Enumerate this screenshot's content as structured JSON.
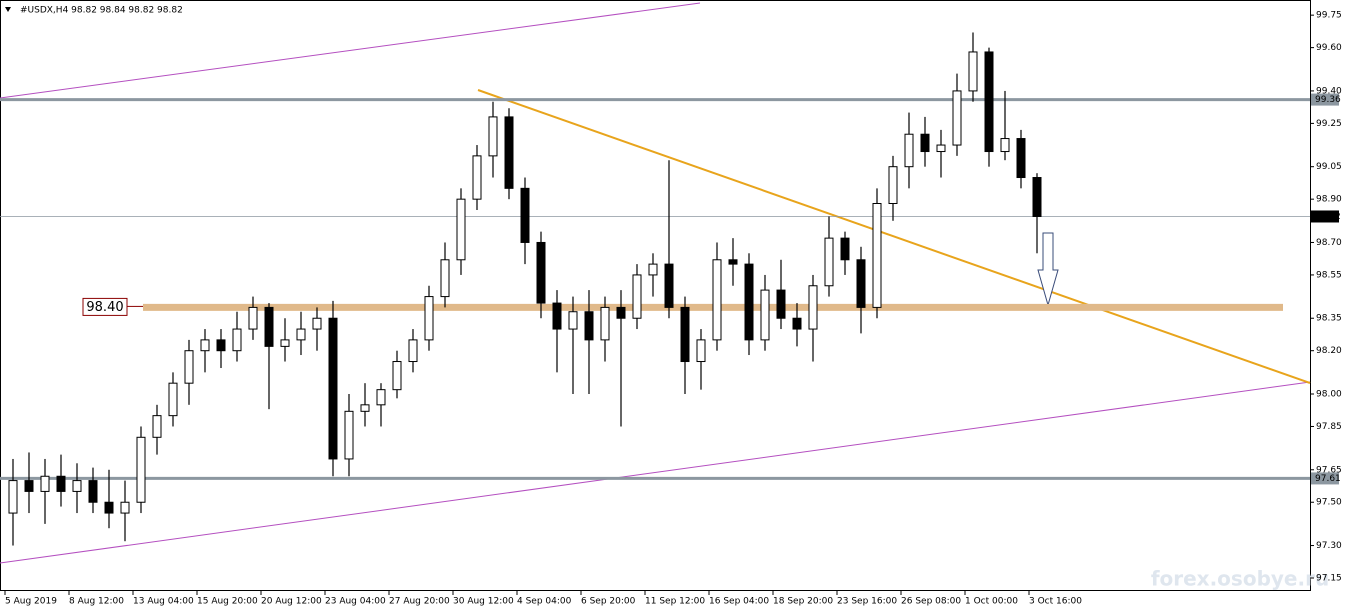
{
  "chart_data": {
    "type": "candlestick",
    "title": "#USDX,H4  98.82 98.84 98.82 98.82",
    "watermark": "forex.osobye.ru",
    "categories": [
      "5 Aug 2019",
      null,
      null,
      null,
      "8 Aug 12:00",
      null,
      null,
      null,
      "13 Aug 04:00",
      null,
      null,
      null,
      "15 Aug 20:00",
      null,
      null,
      null,
      "20 Aug 12:00",
      null,
      null,
      null,
      "23 Aug 04:00",
      null,
      null,
      null,
      "27 Aug 20:00",
      null,
      null,
      null,
      "30 Aug 12:00",
      null,
      null,
      null,
      "4 Sep 04:00",
      null,
      null,
      null,
      "6 Sep 20:00",
      null,
      null,
      null,
      "11 Sep 12:00",
      null,
      null,
      null,
      "16 Sep 04:00",
      null,
      null,
      null,
      "18 Sep 20:00",
      null,
      null,
      null,
      "23 Sep 16:00",
      null,
      null,
      null,
      "26 Sep 08:00",
      null,
      null,
      null,
      "1 Oct 00:00",
      null,
      null,
      null,
      "3 Oct 16:00"
    ],
    "open": [
      97.45,
      97.6,
      97.55,
      97.62,
      97.55,
      97.6,
      97.5,
      97.45,
      97.5,
      97.8,
      97.9,
      98.05,
      98.2,
      98.25,
      98.2,
      98.3,
      98.4,
      98.22,
      98.25,
      98.3,
      98.35,
      97.7,
      97.92,
      97.95,
      98.02,
      98.15,
      98.25,
      98.45,
      98.62,
      98.9,
      99.1,
      99.28,
      98.95,
      98.7,
      98.42,
      98.3,
      98.38,
      98.25,
      98.4,
      98.35,
      98.55,
      98.6,
      98.4,
      98.15,
      98.25,
      98.62,
      98.6,
      98.25,
      98.48,
      98.35,
      98.3,
      98.5,
      98.72,
      98.62,
      98.4,
      98.88,
      99.05,
      99.2,
      99.12,
      99.15,
      99.4,
      99.58,
      99.12,
      99.18,
      99.0
    ],
    "high": [
      97.7,
      97.73,
      97.7,
      97.72,
      97.68,
      97.66,
      97.65,
      97.6,
      97.85,
      97.95,
      98.1,
      98.25,
      98.3,
      98.3,
      98.38,
      98.45,
      98.42,
      98.35,
      98.38,
      98.4,
      98.43,
      98.0,
      98.05,
      98.05,
      98.2,
      98.3,
      98.5,
      98.7,
      98.95,
      99.15,
      99.35,
      99.32,
      99.0,
      98.75,
      98.48,
      98.45,
      98.48,
      98.45,
      98.48,
      98.6,
      98.65,
      99.08,
      98.45,
      98.3,
      98.7,
      98.72,
      98.65,
      98.55,
      98.62,
      98.42,
      98.55,
      98.82,
      98.75,
      98.68,
      98.95,
      99.1,
      99.3,
      99.28,
      99.22,
      99.48,
      99.67,
      99.6,
      99.4,
      99.22,
      99.02
    ],
    "low": [
      97.3,
      97.45,
      97.4,
      97.48,
      97.45,
      97.45,
      97.38,
      97.32,
      97.45,
      97.72,
      97.85,
      97.95,
      98.1,
      98.12,
      98.15,
      98.25,
      97.93,
      98.15,
      98.18,
      98.2,
      97.62,
      97.62,
      97.85,
      97.85,
      97.98,
      98.1,
      98.2,
      98.4,
      98.55,
      98.85,
      99.0,
      98.9,
      98.6,
      98.35,
      98.1,
      98.0,
      98.0,
      98.15,
      97.85,
      98.3,
      98.45,
      98.35,
      98.0,
      98.02,
      98.2,
      98.5,
      98.18,
      98.2,
      98.3,
      98.22,
      98.15,
      98.45,
      98.55,
      98.28,
      98.35,
      98.8,
      98.95,
      99.05,
      99.0,
      99.1,
      99.35,
      99.05,
      99.08,
      98.95,
      98.65
    ],
    "close": [
      97.6,
      97.55,
      97.62,
      97.55,
      97.6,
      97.5,
      97.45,
      97.5,
      97.8,
      97.9,
      98.05,
      98.2,
      98.25,
      98.2,
      98.3,
      98.4,
      98.22,
      98.25,
      98.3,
      98.35,
      97.7,
      97.92,
      97.95,
      98.02,
      98.15,
      98.25,
      98.45,
      98.62,
      98.9,
      99.1,
      99.28,
      98.95,
      98.7,
      98.42,
      98.3,
      98.38,
      98.25,
      98.4,
      98.35,
      98.55,
      98.6,
      98.4,
      98.15,
      98.25,
      98.62,
      98.6,
      98.25,
      98.48,
      98.35,
      98.3,
      98.5,
      98.72,
      98.62,
      98.4,
      98.88,
      99.05,
      99.2,
      99.12,
      99.15,
      99.4,
      99.58,
      99.12,
      99.18,
      99.0,
      98.82
    ],
    "ylim": [
      97.09,
      99.82
    ],
    "yticks": [
      99.75,
      {
        "value": 99.6,
        "label": "99.60"
      },
      {
        "value": 99.4,
        "label": "99.40"
      },
      99.25,
      99.05,
      {
        "value": 98.9,
        "label": "98.90"
      },
      {
        "value": 98.7,
        "label": "98.70"
      },
      98.55,
      98.35,
      {
        "value": 98.2,
        "label": "98.20"
      },
      {
        "value": 98.0,
        "label": "98.00"
      },
      97.85,
      97.65,
      {
        "value": 97.5,
        "label": "97.50"
      },
      {
        "value": 97.3,
        "label": "97.30"
      },
      97.15
    ],
    "price_lines": [
      {
        "value": 99.36,
        "color": "#8c97a0"
      },
      {
        "value": 98.82,
        "color": "#000000"
      },
      {
        "value": 97.61,
        "color": "#8c97a0"
      }
    ],
    "level": {
      "value": 98.4,
      "label": "98.40",
      "color": "#e0b98a"
    },
    "bull_color": "#ffffff",
    "bear_color": "#000000"
  }
}
